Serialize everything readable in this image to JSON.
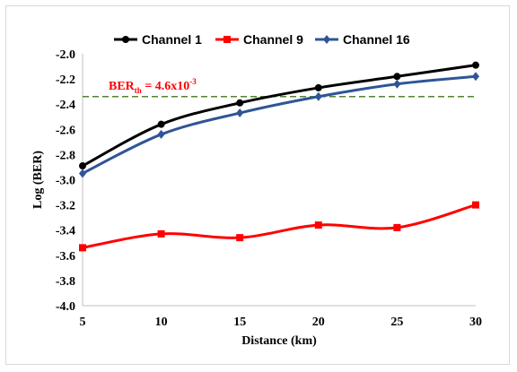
{
  "chart_data": {
    "type": "line",
    "xlabel": "Distance (km)",
    "ylabel": "Log (BER)",
    "x": [
      5,
      10,
      15,
      20,
      25,
      30
    ],
    "xlim": [
      5,
      30
    ],
    "xticks": [
      "5",
      "10",
      "15",
      "20",
      "25",
      "30"
    ],
    "ylim": [
      -4.0,
      -2.0
    ],
    "yticks": [
      "-2.0",
      "-2.2",
      "-2.4",
      "-2.6",
      "-2.8",
      "-3.0",
      "-3.2",
      "-3.4",
      "-3.6",
      "-3.8",
      "-4.0"
    ],
    "grid": false,
    "legend_position": "top",
    "series": [
      {
        "name": "Channel 1",
        "values": [
          -2.89,
          -2.56,
          -2.39,
          -2.27,
          -2.18,
          -2.09
        ],
        "color": "#000000",
        "marker": "circle"
      },
      {
        "name": "Channel 9",
        "values": [
          -3.54,
          -3.43,
          -3.46,
          -3.36,
          -3.38,
          -3.2
        ],
        "color": "#ff0000",
        "marker": "square"
      },
      {
        "name": "Channel 16",
        "values": [
          -2.95,
          -2.64,
          -2.47,
          -2.34,
          -2.24,
          -2.18
        ],
        "color": "#2f5597",
        "marker": "diamond"
      }
    ],
    "threshold": {
      "value": -2.34,
      "color": "#548235",
      "label_main": "BER",
      "label_sub": "th",
      "label_rest": " = 4.6x10",
      "label_sup": "-3"
    }
  }
}
